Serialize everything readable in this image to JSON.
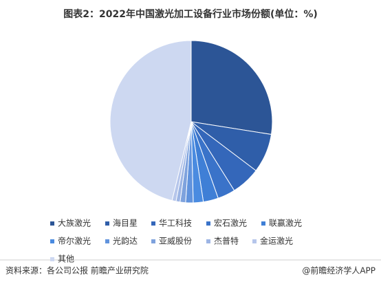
{
  "chart_data": {
    "type": "pie",
    "title": "图表2：2022年中国激光加工设备行业市场份额(单位：%)",
    "categories": [
      "大族激光",
      "海目星",
      "华工科技",
      "宏石激光",
      "联赢激光",
      "帝尔激光",
      "光韵达",
      "亚威股份",
      "杰普特",
      "金运激光",
      "其他"
    ],
    "values": [
      27.5,
      7.8,
      5.8,
      3.5,
      3.0,
      2.0,
      1.5,
      1.1,
      0.8,
      0.8,
      46.2
    ],
    "colors": [
      "#2c5596",
      "#2f5ea9",
      "#3467ba",
      "#3a73c9",
      "#3f7fd6",
      "#4a8be0",
      "#6193dd",
      "#7ea2dd",
      "#9db5e4",
      "#b6c6eb",
      "#cdd8f1"
    ],
    "legend": "bottom",
    "source": "资料来源：各公司公报 前瞻产业研究院",
    "credit": "@前瞻经济学人APP"
  }
}
